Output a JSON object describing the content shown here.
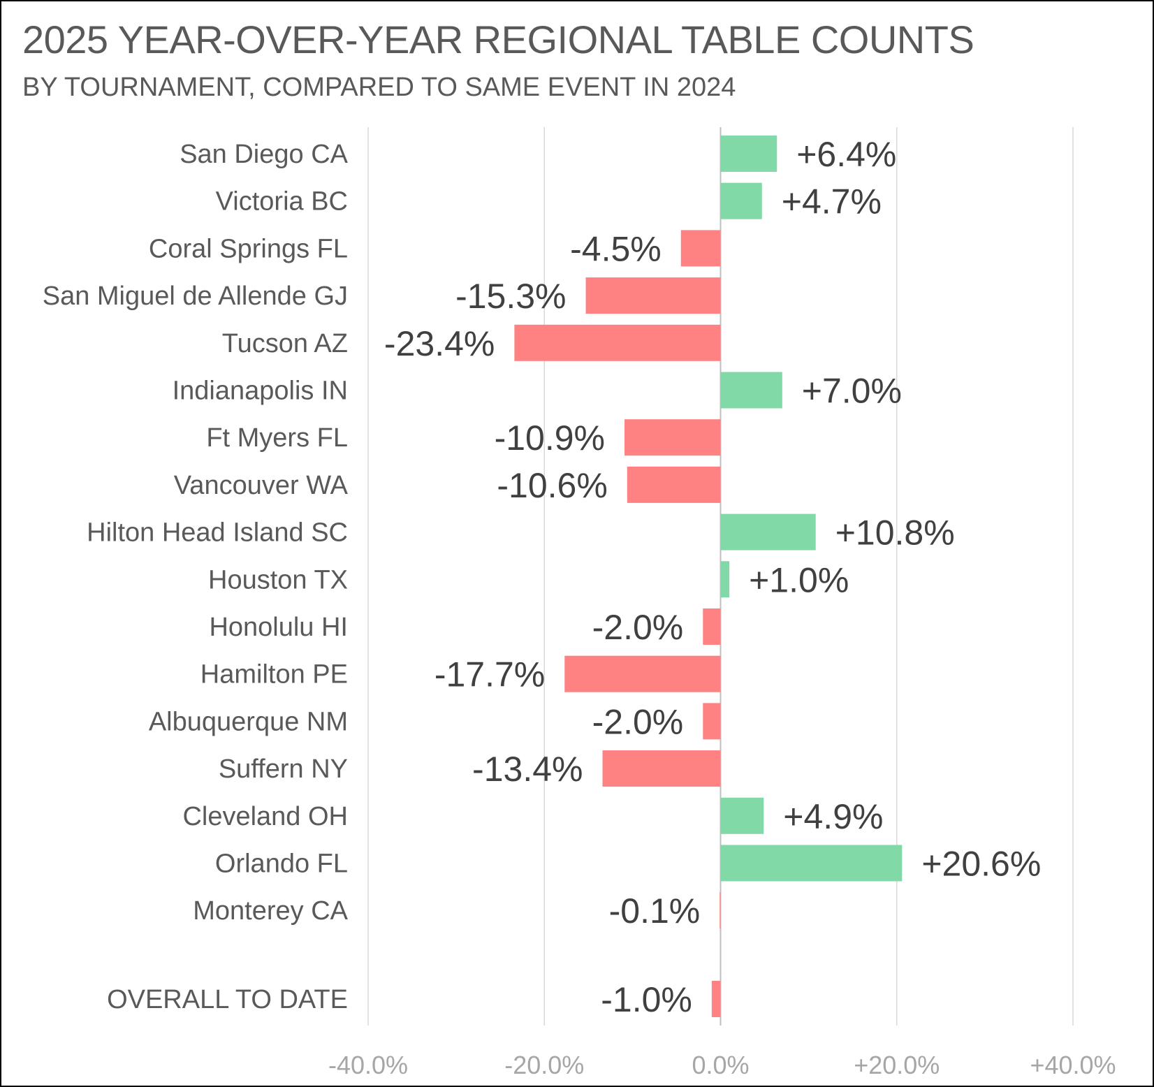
{
  "chart_data": {
    "type": "bar",
    "orientation": "horizontal",
    "title": "2025 YEAR-OVER-YEAR REGIONAL TABLE COUNTS",
    "subtitle": "BY TOURNAMENT, COMPARED TO SAME EVENT IN 2024",
    "categories": [
      "San Diego CA",
      "Victoria BC",
      "Coral Springs FL",
      "San Miguel de Allende GJ",
      "Tucson AZ",
      "Indianapolis IN",
      "Ft Myers FL",
      "Vancouver WA",
      "Hilton Head Island SC",
      "Houston TX",
      "Honolulu HI",
      "Hamilton PE",
      "Albuquerque NM",
      "Suffern NY",
      "Cleveland OH",
      "Orlando FL",
      "Monterey CA",
      "OVERALL TO DATE"
    ],
    "values": [
      6.4,
      4.7,
      -4.5,
      -15.3,
      -23.4,
      7.0,
      -10.9,
      -10.6,
      10.8,
      1.0,
      -2.0,
      -17.7,
      -2.0,
      -13.4,
      4.9,
      20.6,
      -0.1,
      -1.0
    ],
    "value_labels": [
      "+6.4%",
      "+4.7%",
      "-4.5%",
      "-15.3%",
      "-23.4%",
      "+7.0%",
      "-10.9%",
      "-10.6%",
      "+10.8%",
      "+1.0%",
      "-2.0%",
      "-17.7%",
      "-2.0%",
      "-13.4%",
      "+4.9%",
      "+20.6%",
      "-0.1%",
      "-1.0%"
    ],
    "xlim": [
      -40,
      40
    ],
    "xticks": [
      -40,
      -20,
      0,
      20,
      40
    ],
    "xtick_labels": [
      "-40.0%",
      "-20.0%",
      "0.0%",
      "+20.0%",
      "+40.0%"
    ],
    "grid": "vertical",
    "colors": {
      "positive": "#82d9a8",
      "negative": "#ff8282",
      "gridline": "#d9d9d9",
      "zero_line": "#bfbfbf"
    }
  }
}
